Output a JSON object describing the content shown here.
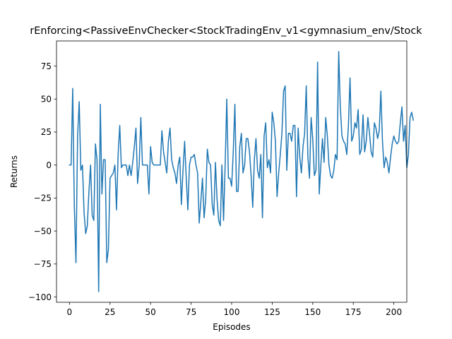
{
  "chart_data": {
    "type": "line",
    "title": "rEnforcing<PassiveEnvChecker<StockTradingEnv_v1<gymnasium_env/Stock",
    "xlabel": "Episodes",
    "ylabel": "Returns",
    "xlim": [
      -8,
      208
    ],
    "ylim": [
      -104,
      94
    ],
    "xticks": [
      0,
      25,
      50,
      75,
      100,
      125,
      150,
      175,
      200
    ],
    "yticks": [
      -100,
      -75,
      -50,
      -25,
      0,
      25,
      50,
      75
    ],
    "grid": false,
    "color": "#1f77b4",
    "series": [
      {
        "values": [
          0,
          0,
          58,
          -32,
          -74,
          22,
          48,
          -4,
          0,
          -36,
          -52,
          -46,
          -20,
          0,
          -38,
          -42,
          16,
          4,
          -96,
          46,
          -22,
          4,
          4,
          -74,
          -64,
          -10,
          -8,
          -6,
          0,
          -34,
          8,
          30,
          -2,
          0,
          0,
          0,
          -8,
          0,
          -8,
          2,
          14,
          28,
          -14,
          0,
          36,
          0,
          0,
          0,
          0,
          -22,
          14,
          2,
          0,
          0,
          0,
          0,
          0,
          26,
          10,
          2,
          -6,
          18,
          28,
          4,
          -2,
          -6,
          -14,
          0,
          6,
          -30,
          -4,
          18,
          -10,
          -34,
          0,
          6,
          6,
          8,
          0,
          -6,
          -44,
          -28,
          -10,
          -40,
          -26,
          12,
          2,
          0,
          -30,
          -38,
          2,
          -26,
          -42,
          -46,
          0,
          -42,
          0,
          50,
          -10,
          -10,
          -16,
          10,
          46,
          -20,
          -20,
          14,
          24,
          -6,
          0,
          20,
          20,
          10,
          -8,
          -32,
          4,
          20,
          -4,
          -10,
          8,
          -40,
          22,
          32,
          -2,
          4,
          -6,
          40,
          32,
          18,
          -24,
          -6,
          8,
          24,
          56,
          60,
          -4,
          24,
          24,
          18,
          30,
          30,
          -24,
          28,
          6,
          -6,
          14,
          24,
          60,
          6,
          -10,
          36,
          20,
          -8,
          -4,
          78,
          -22,
          0,
          20,
          2,
          36,
          22,
          0,
          -8,
          -10,
          -4,
          8,
          4,
          86,
          44,
          22,
          18,
          16,
          8,
          30,
          66,
          18,
          22,
          32,
          28,
          42,
          8,
          12,
          38,
          10,
          18,
          36,
          24,
          10,
          6,
          32,
          28,
          20,
          26,
          56,
          18,
          -2,
          6,
          2,
          -6,
          6,
          16,
          22,
          18,
          16,
          18,
          32,
          44,
          18,
          30,
          -2,
          8,
          36,
          40,
          34
        ]
      }
    ]
  }
}
